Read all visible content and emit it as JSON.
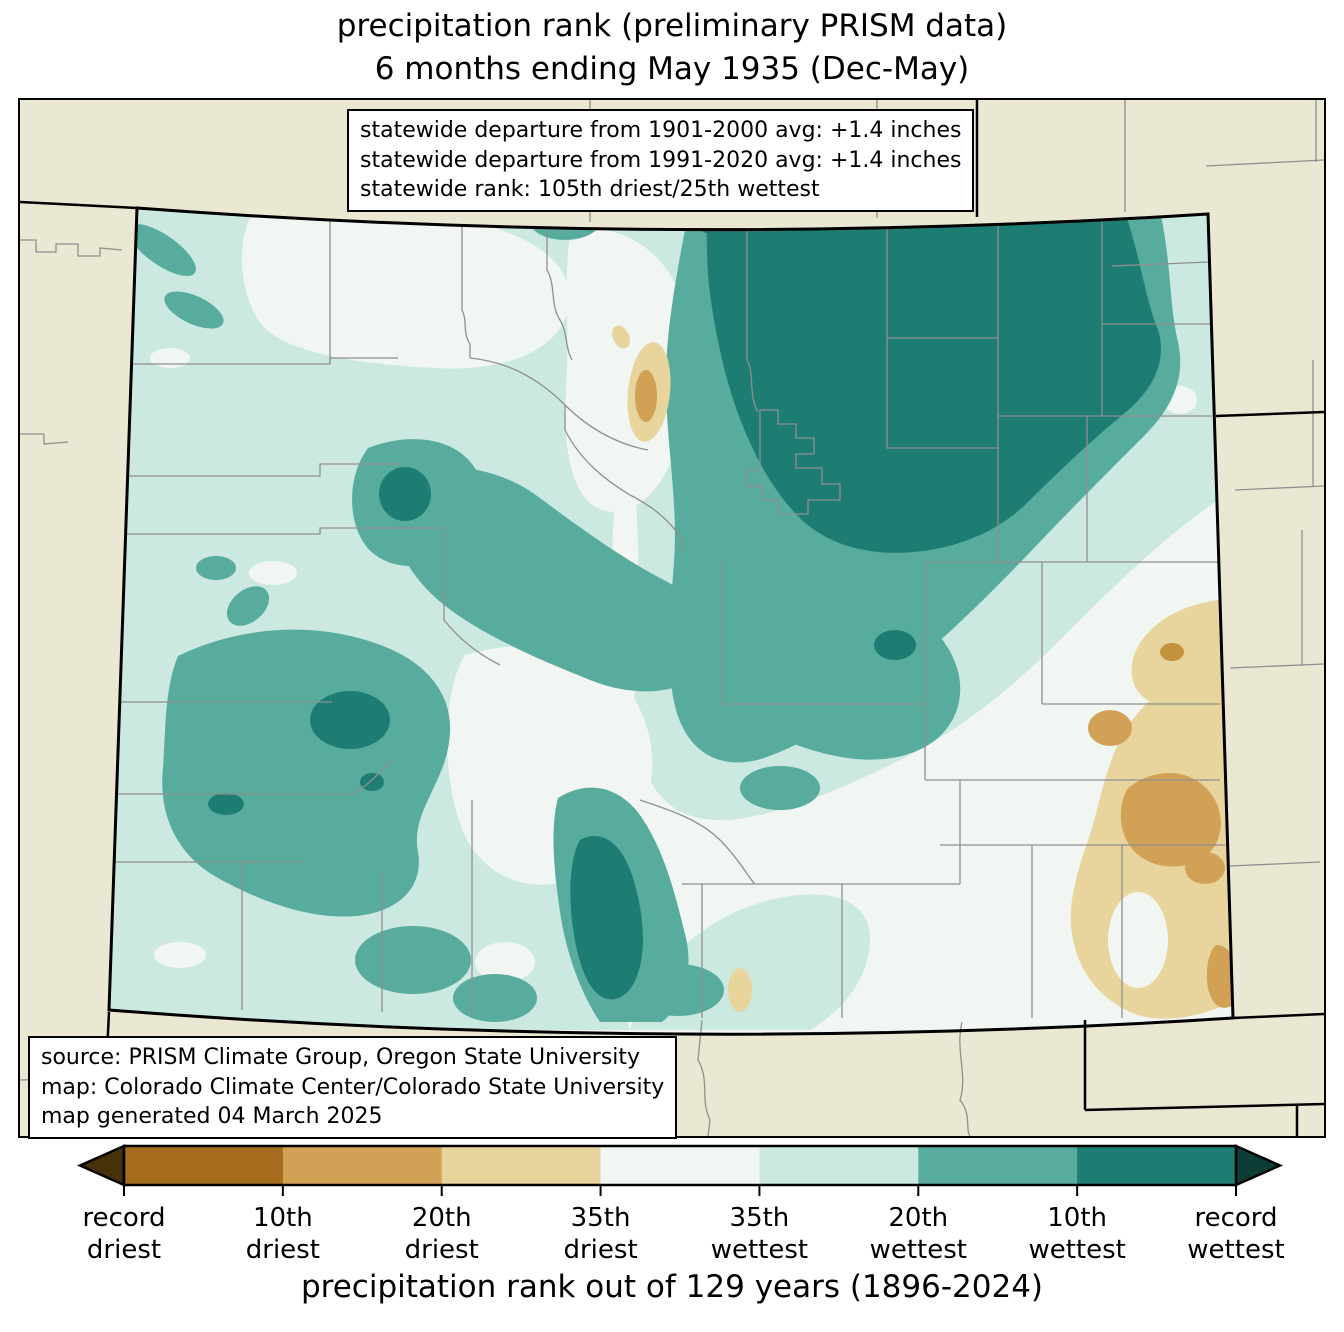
{
  "title": {
    "line1": "precipitation rank (preliminary PRISM data)",
    "line2": "6 months ending May 1935 (Dec-May)"
  },
  "stats_box": {
    "line1": "statewide departure from 1901-2000 avg: +1.4 inches",
    "line2": "statewide departure from 1991-2020 avg: +1.4 inches",
    "line3": "statewide rank: 105th driest/25th wettest"
  },
  "source_box": {
    "line1": "source: PRISM Climate Group, Oregon State University",
    "line2": "map: Colorado Climate Center/Colorado State University",
    "line3": "map generated 04 March 2025"
  },
  "caption": "precipitation rank out of 129 years (1896-2024)",
  "colorbar": {
    "left_arrow_color": "#47310a",
    "right_arrow_color": "#0d3e35",
    "segments": [
      {
        "name": "10th-driest-band",
        "color": "#a66c1d"
      },
      {
        "name": "20th-driest-band",
        "color": "#d1a156"
      },
      {
        "name": "35th-driest-band",
        "color": "#e8d49d"
      },
      {
        "name": "middle-band",
        "color": "#f1f6f2"
      },
      {
        "name": "35th-wettest-band",
        "color": "#cbe9e0"
      },
      {
        "name": "20th-wettest-band",
        "color": "#58ac9e"
      },
      {
        "name": "10th-wettest-band",
        "color": "#1e7d72"
      }
    ],
    "tick_labels": [
      {
        "line1": "record",
        "line2": "driest"
      },
      {
        "line1": "10th",
        "line2": "driest"
      },
      {
        "line1": "20th",
        "line2": "driest"
      },
      {
        "line1": "35th",
        "line2": "driest"
      },
      {
        "line1": "35th",
        "line2": "wettest"
      },
      {
        "line1": "20th",
        "line2": "wettest"
      },
      {
        "line1": "10th",
        "line2": "wettest"
      },
      {
        "line1": "record",
        "line2": "wettest"
      }
    ]
  },
  "map": {
    "region": "Colorado",
    "colors": {
      "out_of_state": "#eae7d2",
      "rank_white": "#f1f6f2",
      "rank_light_teal": "#cbe9e0",
      "rank_medium_teal": "#58ac9e",
      "rank_dark_teal": "#1e7d72",
      "rank_pale_tan": "#e8d49d",
      "rank_medium_tan": "#d1a156",
      "rank_dark_tan": "#c4913c",
      "county_line": "#8f8f8f"
    }
  }
}
